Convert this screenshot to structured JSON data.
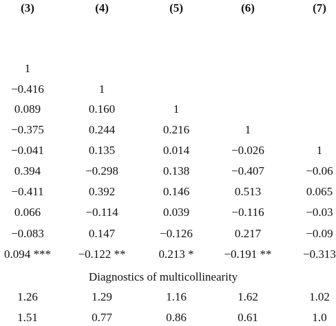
{
  "header": [
    "(3)",
    "(4)",
    "(5)",
    "(6)",
    "(7)"
  ],
  "rows": [
    [
      "1"
    ],
    [
      "−0.416",
      "1"
    ],
    [
      "0.089",
      "0.160",
      "1"
    ],
    [
      "−0.375",
      "0.244",
      "0.216",
      "1"
    ],
    [
      "−0.041",
      "0.135",
      "0.014",
      "−0.026",
      "1"
    ],
    [
      "0.394",
      "−0.298",
      "0.138",
      "−0.407",
      "−0.06"
    ],
    [
      "−0.411",
      "0.392",
      "0.146",
      "0.513",
      "0.065"
    ],
    [
      "0.066",
      "−0.114",
      "0.039",
      "−0.116",
      "−0.03"
    ],
    [
      "−0.083",
      "0.147",
      "−0.126",
      "0.217",
      "−0.09"
    ],
    [
      "0.094 ***",
      "−0.122 **",
      "0.213 *",
      "−0.191 **",
      "−0.313"
    ]
  ],
  "section_title": "Diagnostics of multicollinearity",
  "diagnostics": [
    [
      "1.26",
      "1.29",
      "1.16",
      "1.62",
      "1.02"
    ],
    [
      "1.51",
      "0.77",
      "0.86",
      "0.61",
      "1.0"
    ]
  ]
}
